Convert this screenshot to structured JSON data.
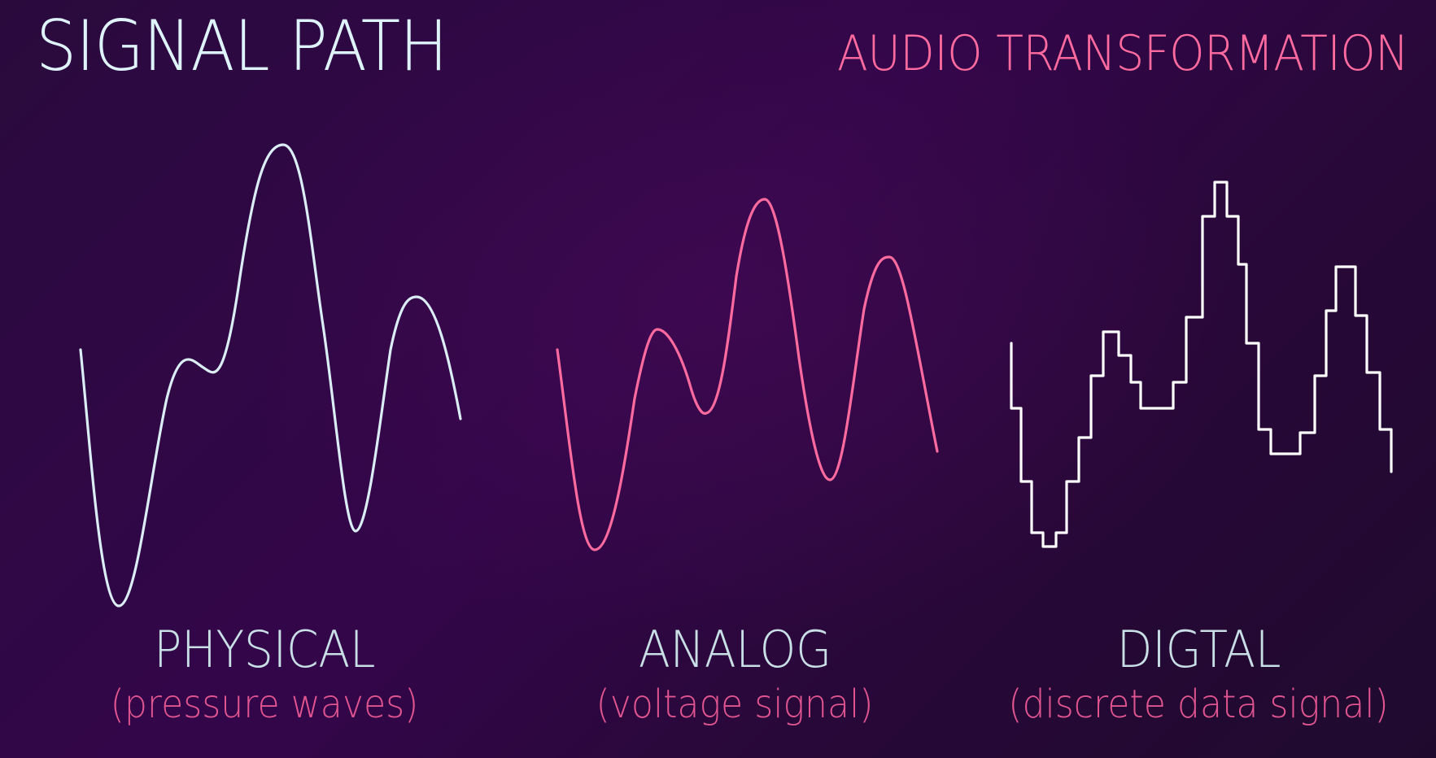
{
  "header": {
    "title": "SIGNAL PATH",
    "subtitle": "AUDIO TRANSFORMATION"
  },
  "colors": {
    "title": "#dff3fb",
    "accent": "#ff6b9f",
    "physical_wave": "#dbeef5",
    "analog_wave": "#ff6b9f",
    "digital_wave": "#ffffff",
    "label": "#c9dfe6",
    "caption": "#e0558f"
  },
  "stages": [
    {
      "label": "PHYSICAL",
      "caption": "(pressure waves)"
    },
    {
      "label": "ANALOG",
      "caption": "(voltage signal)"
    },
    {
      "label": "DIGTAL",
      "caption": "(discrete data signal)"
    }
  ]
}
